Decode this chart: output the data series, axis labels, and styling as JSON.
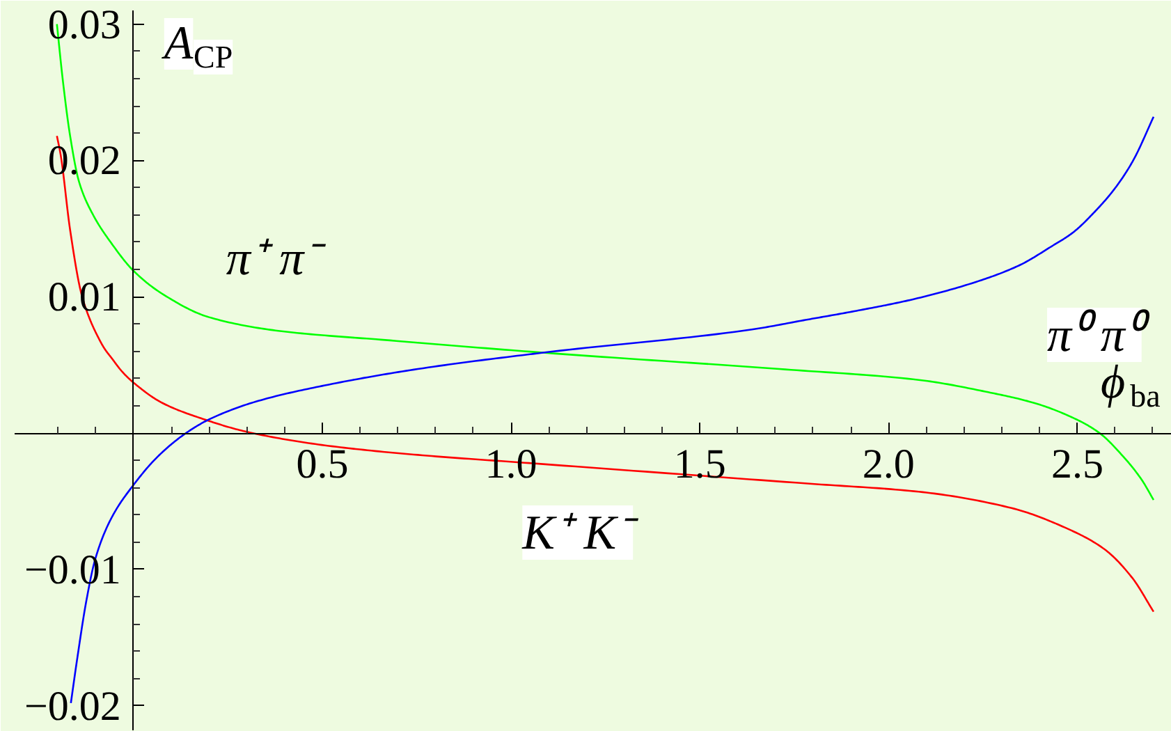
{
  "chart_data": {
    "type": "line",
    "xlabel": "ϕ$_{ba}$",
    "ylabel": "A$_{CP}$",
    "xlim": [
      -0.315,
      2.75
    ],
    "ylim": [
      -0.0218,
      0.031
    ],
    "xticks": [
      {
        "value": -0.2,
        "label": null
      },
      {
        "value": -0.1,
        "label": null
      },
      {
        "value": 0.1,
        "label": null
      },
      {
        "value": 0.2,
        "label": null
      },
      {
        "value": 0.3,
        "label": null
      },
      {
        "value": 0.4,
        "label": null
      },
      0.5,
      {
        "value": 0.6,
        "label": null
      },
      {
        "value": 0.7,
        "label": null
      },
      {
        "value": 0.8,
        "label": null
      },
      {
        "value": 0.9,
        "label": null
      },
      {
        "value": 1.0,
        "label": "1.0"
      },
      {
        "value": 1.1,
        "label": null
      },
      {
        "value": 1.2,
        "label": null
      },
      {
        "value": 1.3,
        "label": null
      },
      {
        "value": 1.4,
        "label": null
      },
      1.5,
      {
        "value": 1.6,
        "label": null
      },
      {
        "value": 1.7,
        "label": null
      },
      {
        "value": 1.8,
        "label": null
      },
      {
        "value": 1.9,
        "label": null
      },
      {
        "value": 2.0,
        "label": "2.0"
      },
      {
        "value": 2.1,
        "label": null
      },
      {
        "value": 2.2,
        "label": null
      },
      {
        "value": 2.3,
        "label": null
      },
      {
        "value": 2.4,
        "label": null
      },
      2.5,
      {
        "value": 2.6,
        "label": null
      },
      {
        "value": 2.7,
        "label": null
      }
    ],
    "yticks": [
      {
        "value": -0.02,
        "label": "−0.02"
      },
      {
        "value": -0.018,
        "label": null
      },
      {
        "value": -0.016,
        "label": null
      },
      {
        "value": -0.014,
        "label": null
      },
      {
        "value": -0.012,
        "label": null
      },
      {
        "value": -0.01,
        "label": "−0.01"
      },
      {
        "value": -0.008,
        "label": null
      },
      {
        "value": -0.006,
        "label": null
      },
      {
        "value": -0.004,
        "label": null
      },
      {
        "value": -0.002,
        "label": null
      },
      {
        "value": 0.002,
        "label": null
      },
      {
        "value": 0.004,
        "label": null
      },
      {
        "value": 0.006,
        "label": null
      },
      {
        "value": 0.008,
        "label": null
      },
      0.01,
      {
        "value": 0.012,
        "label": null
      },
      {
        "value": 0.014,
        "label": null
      },
      {
        "value": 0.016,
        "label": null
      },
      {
        "value": 0.018,
        "label": null
      },
      0.02,
      {
        "value": 0.022,
        "label": null
      },
      {
        "value": 0.024,
        "label": null
      },
      {
        "value": 0.026,
        "label": null
      },
      {
        "value": 0.028,
        "label": null
      },
      0.03
    ],
    "series": [
      {
        "name": "π⁺ π⁻",
        "color": "#00ff00",
        "x": [
          -0.203,
          -0.187,
          -0.168,
          -0.144,
          -0.107,
          -0.058,
          0,
          0.077,
          0.2,
          0.384,
          0.679,
          1.085,
          1.711,
          2.08,
          2.264,
          2.387,
          2.498,
          2.559,
          2.621,
          2.67,
          2.702
        ],
        "values": [
          0.03,
          0.0258,
          0.0218,
          0.0184,
          0.016,
          0.0139,
          0.0119,
          0.0102,
          0.0085,
          0.0075,
          0.0068,
          0.0059,
          0.0047,
          0.0039,
          0.003,
          0.0022,
          0.001,
          0.0,
          -0.0017,
          -0.0034,
          -0.0049
        ]
      },
      {
        "name": "K⁺ K⁻",
        "color": "#ff0000",
        "x": [
          -0.203,
          -0.193,
          -0.168,
          -0.138,
          -0.115,
          -0.095,
          -0.077,
          -0.058,
          -0.03,
          0,
          0.077,
          0.188,
          0.299,
          0.507,
          0.753,
          1.048,
          1.785,
          2.08,
          2.326,
          2.473,
          2.571,
          2.645,
          2.702
        ],
        "values": [
          0.0218,
          0.0204,
          0.0149,
          0.0102,
          0.0083,
          0.0071,
          0.0062,
          0.0055,
          0.0045,
          0.0037,
          0.0022,
          0.001,
          0.0001,
          -0.0009,
          -0.0016,
          -0.0022,
          -0.0037,
          -0.0043,
          -0.0055,
          -0.007,
          -0.0085,
          -0.0106,
          -0.0131
        ]
      },
      {
        "name": "π⁰ π⁰",
        "color": "#0000ff",
        "x": [
          -0.166,
          -0.15,
          -0.125,
          -0.101,
          -0.058,
          0,
          0.065,
          0.139,
          0.2,
          0.323,
          0.507,
          0.753,
          1.085,
          1.638,
          1.78,
          1.921,
          2.063,
          2.233,
          2.346,
          2.432,
          2.488,
          2.545,
          2.601,
          2.648,
          2.702
        ],
        "values": [
          -0.0198,
          -0.0167,
          -0.0123,
          -0.0092,
          -0.0062,
          -0.0038,
          -0.0017,
          0.0,
          0.001,
          0.0023,
          0.0035,
          0.0047,
          0.0059,
          0.0076,
          0.0083,
          0.009,
          0.0098,
          0.0111,
          0.0123,
          0.0137,
          0.0147,
          0.0162,
          0.018,
          0.02,
          0.0232
        ]
      }
    ]
  }
}
